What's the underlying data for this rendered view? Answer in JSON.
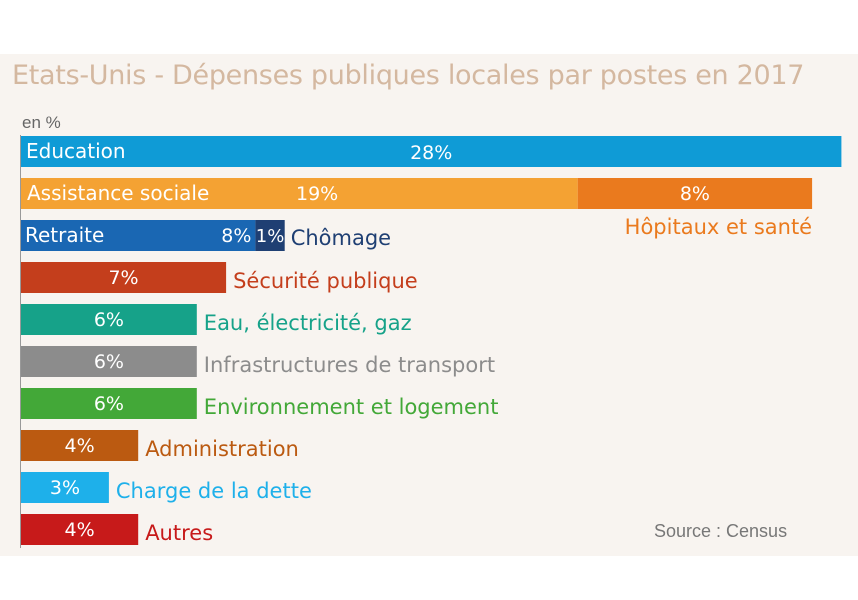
{
  "title": "Etats-Unis - Dépenses publiques locales par postes en 2017",
  "unit_label": "en %",
  "source": "Source : Census",
  "chart_data": {
    "type": "bar",
    "orientation": "horizontal",
    "stacked": true,
    "unit": "%",
    "rows": [
      {
        "segments": [
          {
            "name": "Education",
            "value": 28,
            "label": "28%",
            "color": "#0f9bd6"
          }
        ]
      },
      {
        "segments": [
          {
            "name": "Assistance sociale",
            "value": 19,
            "label": "19%",
            "color": "#f4a233"
          },
          {
            "name": "Hôpitaux et santé",
            "value": 8,
            "label": "8%",
            "color": "#ea7a1e"
          }
        ]
      },
      {
        "segments": [
          {
            "name": "Retraite",
            "value": 8,
            "label": "8%",
            "color": "#1a67b3"
          },
          {
            "name": "Chômage",
            "value": 1,
            "label": "1%",
            "color": "#1f3f73"
          }
        ]
      },
      {
        "segments": [
          {
            "name": "Sécurité publique",
            "value": 7,
            "label": "7%",
            "color": "#c43e1c"
          }
        ]
      },
      {
        "segments": [
          {
            "name": "Eau, électricité, gaz",
            "value": 6,
            "label": "6%",
            "color": "#16a289"
          }
        ]
      },
      {
        "segments": [
          {
            "name": "Infrastructures de transport",
            "value": 6,
            "label": "6%",
            "color": "#8c8c8c"
          }
        ]
      },
      {
        "segments": [
          {
            "name": "Environnement et logement",
            "value": 6,
            "label": "6%",
            "color": "#43a838"
          }
        ]
      },
      {
        "segments": [
          {
            "name": "Administration",
            "value": 4,
            "label": "4%",
            "color": "#bb5a11"
          }
        ]
      },
      {
        "segments": [
          {
            "name": "Charge de la dette",
            "value": 3,
            "label": "3%",
            "color": "#1eb0ea"
          }
        ]
      },
      {
        "segments": [
          {
            "name": "Autres",
            "value": 4,
            "label": "4%",
            "color": "#c71a1a"
          }
        ]
      }
    ]
  }
}
